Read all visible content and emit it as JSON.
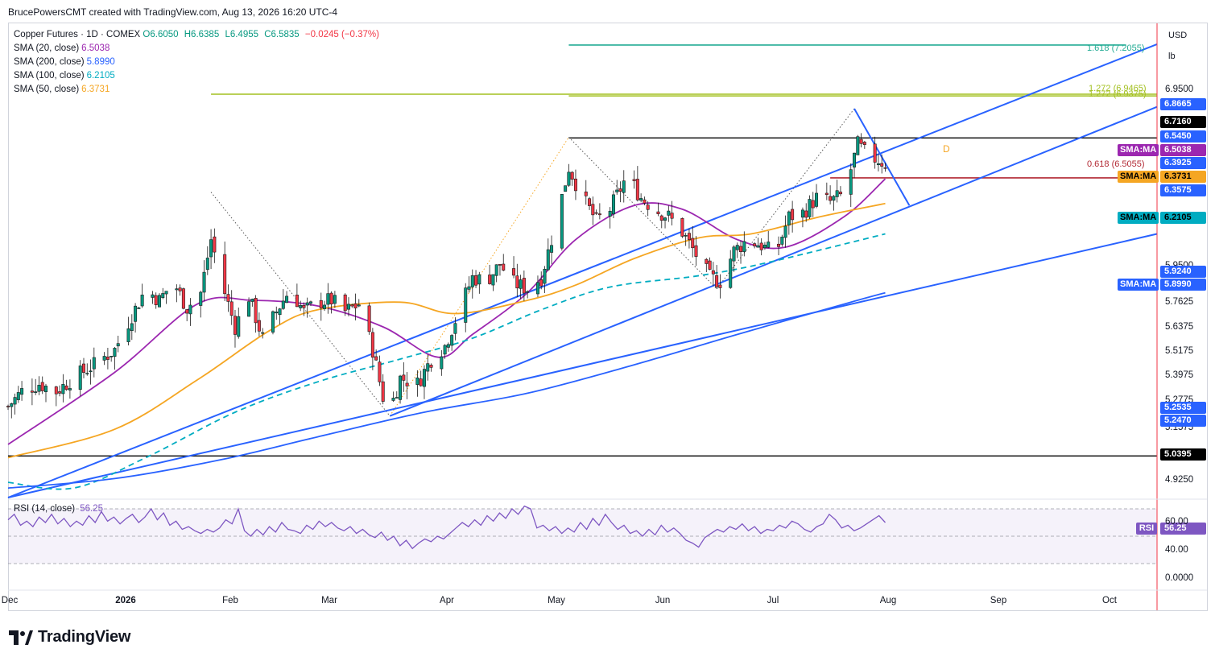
{
  "attribution": "BrucePowersCMT created with TradingView.com, Aug 13, 2026 16:20 UTC-4",
  "legend": {
    "title": "Copper Futures · 1D · COMEX",
    "ohlc": {
      "o": "O6.6050",
      "h": "H6.6385",
      "l": "L6.4955",
      "c": "C6.5835",
      "chg": "−0.0245 (−0.37%)"
    },
    "mas": [
      {
        "label": "SMA (20, close)",
        "value": "6.5038",
        "color": "#9c27b0"
      },
      {
        "label": "SMA (200, close)",
        "value": "5.8990",
        "color": "#2962ff"
      },
      {
        "label": "SMA (100, close)",
        "value": "6.2105",
        "color": "#00acc1"
      },
      {
        "label": "SMA (50, close)",
        "value": "6.3731",
        "color": "#f5a623"
      }
    ]
  },
  "axis": {
    "currency": "USD",
    "unit": "lb",
    "price_labels": [
      "6.9500",
      "5.9500",
      "5.7625",
      "5.6375",
      "5.5175",
      "5.3975",
      "5.2775",
      "5.1575",
      "4.9250"
    ],
    "badges": [
      {
        "text": "6.8665",
        "color": "#2962ff",
        "text_color": "#ffffff"
      },
      {
        "text": "6.7160",
        "color": "#000000",
        "text_color": "#ffffff"
      },
      {
        "text": "6.5450",
        "color": "#2962ff",
        "text_color": "#ffffff"
      },
      {
        "text": "6.5038",
        "color": "#9c27b0",
        "text_color": "#ffffff"
      },
      {
        "text": "6.3925",
        "color": "#2962ff",
        "text_color": "#ffffff"
      },
      {
        "text": "6.3731",
        "color": "#f5a623",
        "text_color": "#000000"
      },
      {
        "text": "6.3575",
        "color": "#2962ff",
        "text_color": "#ffffff"
      },
      {
        "text": "6.2105",
        "color": "#00acc1",
        "text_color": "#000000"
      },
      {
        "text": "5.9240",
        "color": "#2962ff",
        "text_color": "#ffffff"
      },
      {
        "text": "5.8990",
        "color": "#2962ff",
        "text_color": "#ffffff"
      },
      {
        "text": "5.2535",
        "color": "#2962ff",
        "text_color": "#ffffff"
      },
      {
        "text": "5.2470",
        "color": "#2962ff",
        "text_color": "#ffffff"
      },
      {
        "text": "5.0395",
        "color": "#000000",
        "text_color": "#ffffff"
      }
    ],
    "ma_tags": [
      {
        "text": "SMA:MA",
        "color": "#9c27b0",
        "text_color": "#ffffff"
      },
      {
        "text": "SMA:MA",
        "color": "#f5a623",
        "text_color": "#000000"
      },
      {
        "text": "SMA:MA",
        "color": "#00acc1",
        "text_color": "#000000"
      },
      {
        "text": "SMA:MA",
        "color": "#2962ff",
        "text_color": "#ffffff"
      }
    ],
    "time_labels": [
      "Dec",
      "2026",
      "Feb",
      "Mar",
      "Apr",
      "May",
      "Jun",
      "Jul",
      "Aug",
      "Sep",
      "Oct"
    ]
  },
  "fib_labels": [
    {
      "text": "1.618 (7.2055)",
      "color": "#22ab94"
    },
    {
      "text": "1.272 (6.9465)",
      "color": "#a3c020"
    },
    {
      "text": "1.272 (6.9375)",
      "color": "#a3c020"
    },
    {
      "text": "0.618 (6.5055)",
      "color": "#b22833"
    }
  ],
  "pattern_label": {
    "text": "D",
    "color": "#f5a623"
  },
  "rsi": {
    "legend_label": "RSI (14, close)",
    "legend_value": "56.25",
    "badge_label": "RSI",
    "badge_value": "56.25",
    "color": "#7e57c2",
    "axis_labels": [
      "60.00",
      "40.00",
      "0.0000"
    ],
    "levels": [
      70,
      50,
      30
    ],
    "values": [
      62,
      66,
      58,
      61,
      57,
      64,
      60,
      66,
      59,
      63,
      57,
      61,
      58,
      65,
      60,
      68,
      61,
      64,
      59,
      63,
      66,
      60,
      64,
      70,
      62,
      67,
      58,
      61,
      55,
      57,
      54,
      52,
      55,
      53,
      56,
      62,
      59,
      70,
      54,
      50,
      55,
      51,
      57,
      53,
      60,
      55,
      54,
      52,
      58,
      55,
      61,
      57,
      60,
      56,
      54,
      57,
      52,
      55,
      51,
      49,
      53,
      47,
      50,
      43,
      47,
      41,
      45,
      48,
      46,
      50,
      48,
      52,
      56,
      60,
      57,
      62,
      58,
      65,
      61,
      67,
      63,
      70,
      66,
      72,
      70,
      56,
      58,
      54,
      57,
      52,
      56,
      53,
      60,
      55,
      63,
      58,
      66,
      60,
      55,
      58,
      52,
      54,
      50,
      55,
      51,
      58,
      53,
      56,
      52,
      47,
      45,
      42,
      49,
      52,
      55,
      53,
      57,
      55,
      59,
      54,
      57,
      52,
      55,
      54,
      58,
      56,
      61,
      59,
      55,
      53,
      57,
      59,
      66,
      62,
      56,
      58,
      54,
      56,
      59,
      62,
      65,
      60
    ],
    "ylim": [
      0,
      100
    ]
  },
  "chart_data": {
    "type": "candlestick",
    "title": "Copper Futures · 1D · COMEX",
    "y_unit": "USD/lb",
    "ylim": [
      4.82,
      7.32
    ],
    "grid": false,
    "legend_position": "top-left",
    "x_range": [
      "2025-12-01",
      "2026-10-31"
    ],
    "time_ticks": [
      {
        "label": "Dec",
        "date": "2025-12-01"
      },
      {
        "label": "2026",
        "date": "2026-01-01"
      },
      {
        "label": "Feb",
        "date": "2026-02-01"
      },
      {
        "label": "Mar",
        "date": "2026-03-01"
      },
      {
        "label": "Apr",
        "date": "2026-04-01"
      },
      {
        "label": "May",
        "date": "2026-05-01"
      },
      {
        "label": "Jun",
        "date": "2026-06-01"
      },
      {
        "label": "Jul",
        "date": "2026-07-01"
      },
      {
        "label": "Aug",
        "date": "2026-08-01"
      },
      {
        "label": "Sep",
        "date": "2026-09-01"
      },
      {
        "label": "Oct",
        "date": "2026-10-01"
      }
    ],
    "last_bar_date": "2026-08-13",
    "close_path": [
      [
        "2025-12-01",
        5.3
      ],
      [
        "2025-12-05",
        5.38
      ],
      [
        "2025-12-10",
        5.42
      ],
      [
        "2025-12-15",
        5.38
      ],
      [
        "2025-12-20",
        5.45
      ],
      [
        "2025-12-26",
        5.52
      ],
      [
        "2026-01-01",
        5.6
      ],
      [
        "2026-01-06",
        5.78
      ],
      [
        "2026-01-10",
        5.92
      ],
      [
        "2026-01-14",
        5.86
      ],
      [
        "2026-01-18",
        5.96
      ],
      [
        "2026-01-22",
        5.82
      ],
      [
        "2026-01-26",
        5.9
      ],
      [
        "2026-01-29",
        6.18
      ],
      [
        "2026-02-02",
        5.9
      ],
      [
        "2026-02-05",
        5.72
      ],
      [
        "2026-02-09",
        5.88
      ],
      [
        "2026-02-13",
        5.66
      ],
      [
        "2026-02-17",
        5.8
      ],
      [
        "2026-02-21",
        5.92
      ],
      [
        "2026-02-25",
        5.8
      ],
      [
        "2026-03-01",
        5.85
      ],
      [
        "2026-03-05",
        5.86
      ],
      [
        "2026-03-09",
        5.8
      ],
      [
        "2026-03-13",
        5.84
      ],
      [
        "2026-03-17",
        5.6
      ],
      [
        "2026-03-20",
        5.35
      ],
      [
        "2026-03-22",
        5.28
      ],
      [
        "2026-03-25",
        5.45
      ],
      [
        "2026-03-30",
        5.42
      ],
      [
        "2026-04-03",
        5.55
      ],
      [
        "2026-04-07",
        5.62
      ],
      [
        "2026-04-11",
        5.8
      ],
      [
        "2026-04-15",
        5.98
      ],
      [
        "2026-04-19",
        5.96
      ],
      [
        "2026-04-23",
        6.05
      ],
      [
        "2026-04-27",
        5.95
      ],
      [
        "2026-05-01",
        5.92
      ],
      [
        "2026-05-05",
        5.98
      ],
      [
        "2026-05-09",
        6.25
      ],
      [
        "2026-05-13",
        6.56
      ],
      [
        "2026-05-17",
        6.4
      ],
      [
        "2026-05-21",
        6.28
      ],
      [
        "2026-05-25",
        6.34
      ],
      [
        "2026-05-30",
        6.52
      ],
      [
        "2026-06-03",
        6.4
      ],
      [
        "2026-06-07",
        6.34
      ],
      [
        "2026-06-11",
        6.3
      ],
      [
        "2026-06-15",
        6.22
      ],
      [
        "2026-06-19",
        6.1
      ],
      [
        "2026-06-23",
        5.98
      ],
      [
        "2026-06-26",
        5.96
      ],
      [
        "2026-06-30",
        6.12
      ],
      [
        "2026-07-04",
        6.18
      ],
      [
        "2026-07-08",
        6.15
      ],
      [
        "2026-07-12",
        6.1
      ],
      [
        "2026-07-16",
        6.3
      ],
      [
        "2026-07-20",
        6.32
      ],
      [
        "2026-07-24",
        6.4
      ],
      [
        "2026-07-28",
        6.38
      ],
      [
        "2026-08-01",
        6.42
      ],
      [
        "2026-08-05",
        6.68
      ],
      [
        "2026-08-08",
        6.62
      ],
      [
        "2026-08-11",
        6.6
      ],
      [
        "2026-08-13",
        6.58
      ]
    ],
    "series": [
      {
        "name": "SMA (20, close)",
        "color": "#9c27b0",
        "dash": false,
        "points": [
          [
            "2025-12-01",
            5.1
          ],
          [
            "2026-01-01",
            5.48
          ],
          [
            "2026-01-25",
            5.84
          ],
          [
            "2026-02-10",
            5.86
          ],
          [
            "2026-03-01",
            5.83
          ],
          [
            "2026-03-20",
            5.72
          ],
          [
            "2026-04-05",
            5.56
          ],
          [
            "2026-04-15",
            5.68
          ],
          [
            "2026-05-01",
            5.9
          ],
          [
            "2026-05-15",
            6.18
          ],
          [
            "2026-06-01",
            6.36
          ],
          [
            "2026-06-15",
            6.34
          ],
          [
            "2026-07-01",
            6.18
          ],
          [
            "2026-07-15",
            6.14
          ],
          [
            "2026-08-01",
            6.3
          ],
          [
            "2026-08-13",
            6.5
          ]
        ]
      },
      {
        "name": "SMA (50, close)",
        "color": "#f5a623",
        "dash": false,
        "points": [
          [
            "2025-12-01",
            5.03
          ],
          [
            "2026-01-01",
            5.18
          ],
          [
            "2026-01-25",
            5.44
          ],
          [
            "2026-02-15",
            5.7
          ],
          [
            "2026-03-01",
            5.81
          ],
          [
            "2026-03-25",
            5.85
          ],
          [
            "2026-04-10",
            5.79
          ],
          [
            "2026-05-01",
            5.86
          ],
          [
            "2026-05-15",
            5.94
          ],
          [
            "2026-06-01",
            6.08
          ],
          [
            "2026-06-20",
            6.19
          ],
          [
            "2026-07-05",
            6.21
          ],
          [
            "2026-07-25",
            6.3
          ],
          [
            "2026-08-13",
            6.37
          ]
        ]
      },
      {
        "name": "SMA (100, close)",
        "color": "#00acc1",
        "dash": true,
        "points": [
          [
            "2025-12-01",
            4.9
          ],
          [
            "2025-12-20",
            4.87
          ],
          [
            "2026-01-10",
            5.03
          ],
          [
            "2026-02-05",
            5.27
          ],
          [
            "2026-03-01",
            5.43
          ],
          [
            "2026-03-25",
            5.55
          ],
          [
            "2026-04-15",
            5.66
          ],
          [
            "2026-05-05",
            5.81
          ],
          [
            "2026-05-25",
            5.93
          ],
          [
            "2026-06-20",
            5.99
          ],
          [
            "2026-07-10",
            6.06
          ],
          [
            "2026-08-13",
            6.21
          ]
        ]
      },
      {
        "name": "SMA (200, close)",
        "color": "#2962ff",
        "dash": false,
        "points": [
          [
            "2025-12-01",
            4.87
          ],
          [
            "2026-01-01",
            4.92
          ],
          [
            "2026-02-01",
            5.02
          ],
          [
            "2026-03-01",
            5.14
          ],
          [
            "2026-04-01",
            5.27
          ],
          [
            "2026-05-01",
            5.37
          ],
          [
            "2026-06-01",
            5.52
          ],
          [
            "2026-07-01",
            5.68
          ],
          [
            "2026-08-01",
            5.84
          ],
          [
            "2026-08-13",
            5.9
          ]
        ]
      }
    ],
    "trendlines": [
      {
        "color": "#2962ff",
        "from": [
          "2025-12-01",
          4.82
        ],
        "to": [
          "2026-10-31",
          7.21
        ]
      },
      {
        "color": "#2962ff",
        "from": [
          "2026-03-22",
          5.25
        ],
        "to": [
          "2026-10-31",
          6.88
        ]
      },
      {
        "color": "#2962ff",
        "from": [
          "2025-12-01",
          4.82
        ],
        "to": [
          "2026-10-31",
          6.21
        ]
      },
      {
        "color": "#2962ff",
        "from": [
          "2026-08-04",
          6.87
        ],
        "to": [
          "2026-08-20",
          6.36
        ]
      }
    ],
    "horizontal_lines": [
      {
        "value": 6.716,
        "color": "#000000",
        "from": "2026-05-13",
        "to": "2026-10-31"
      },
      {
        "value": 5.0395,
        "color": "#000000",
        "from": "2025-12-01",
        "to": "2026-10-31"
      },
      {
        "value": 7.2055,
        "color": "#22ab94",
        "from": "2026-05-13",
        "to": "2026-10-22"
      },
      {
        "value": 6.9465,
        "color": "#a3c020",
        "from": "2026-01-29",
        "to": "2026-10-31"
      },
      {
        "value": 6.9375,
        "color": "#a3c020",
        "from": "2026-05-13",
        "to": "2026-10-31"
      },
      {
        "value": 6.5055,
        "color": "#b22833",
        "from": "2026-07-28",
        "to": "2026-10-31"
      }
    ],
    "pattern_points": [
      [
        "2026-01-29",
        6.43
      ],
      [
        "2026-03-22",
        5.25
      ],
      [
        "2026-05-13",
        6.72
      ],
      [
        "2026-06-25",
        5.92
      ],
      [
        "2026-08-04",
        6.87
      ]
    ]
  }
}
